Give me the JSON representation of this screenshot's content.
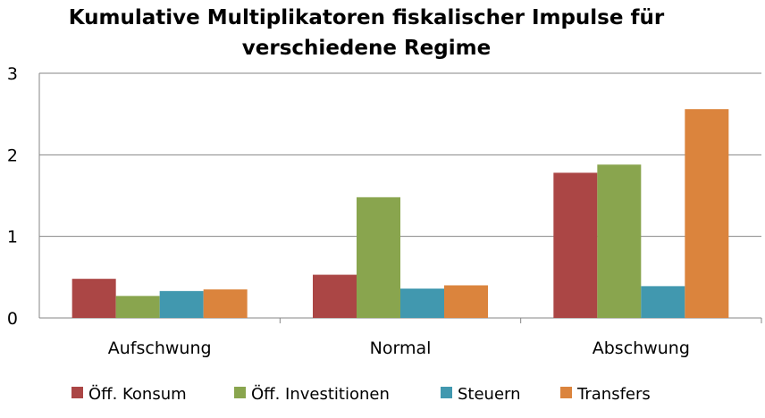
{
  "chart_data": {
    "type": "bar",
    "title": "Kumulative Multiplikatoren fiskalischer Impulse für verschiedene Regime",
    "categories": [
      "Aufschwung",
      "Normal",
      "Abschwung"
    ],
    "series": [
      {
        "name": "Öff. Konsum",
        "color": "#AB4645",
        "values": [
          0.48,
          0.53,
          1.78
        ]
      },
      {
        "name": "Öff. Investitionen",
        "color": "#89A54E",
        "values": [
          0.27,
          1.48,
          1.88
        ]
      },
      {
        "name": "Steuern",
        "color": "#4198AF",
        "values": [
          0.33,
          0.36,
          0.39
        ]
      },
      {
        "name": "Transfers",
        "color": "#DB843D",
        "values": [
          0.35,
          0.4,
          2.56
        ]
      }
    ],
    "yticks": [
      "0",
      "1",
      "2",
      "3"
    ],
    "ylim": [
      0,
      3
    ],
    "grid": true,
    "legend": "bottom"
  }
}
